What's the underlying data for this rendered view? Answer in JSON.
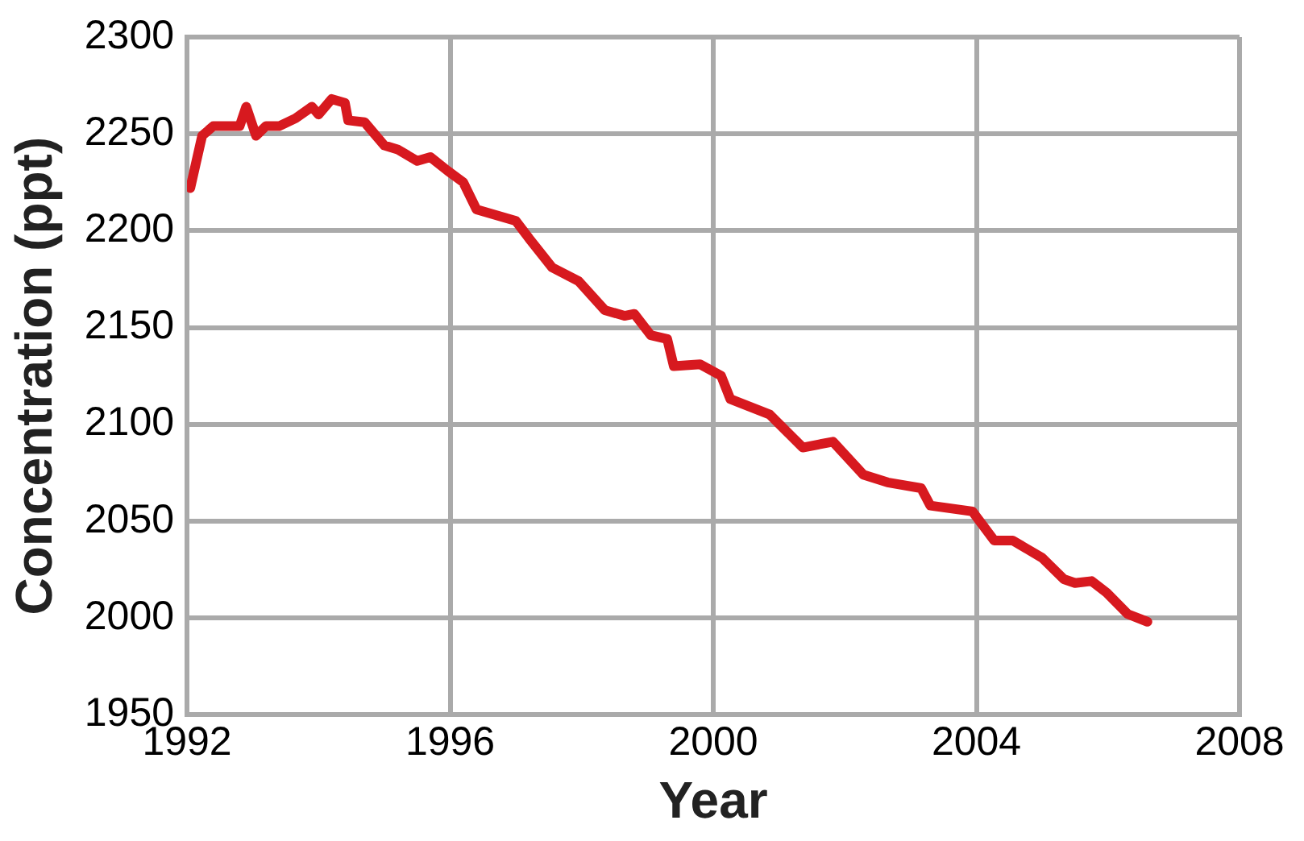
{
  "chart_data": {
    "type": "line",
    "xlabel": "Year",
    "ylabel": "Concentration (ppt)",
    "xlim": [
      1992,
      2008
    ],
    "xticks": [
      1992,
      1996,
      2000,
      2004,
      2008
    ],
    "ylim": [
      1950,
      2300
    ],
    "yticks": [
      1950,
      2000,
      2050,
      2100,
      2150,
      2200,
      2250,
      2300
    ],
    "grid": true,
    "legend": false,
    "marker": "none",
    "line_style": "solid",
    "series": [
      {
        "color": "#d7191f",
        "x": [
          1992.05,
          1992.23,
          1992.4,
          1992.8,
          1992.9,
          1993.05,
          1993.2,
          1993.4,
          1993.65,
          1993.9,
          1994.0,
          1994.2,
          1994.4,
          1994.45,
          1994.7,
          1995.0,
          1995.2,
          1995.5,
          1995.7,
          1995.96,
          1996.2,
          1996.4,
          1996.8,
          1997.0,
          1997.2,
          1997.55,
          1997.95,
          1998.35,
          1998.65,
          1998.8,
          1999.05,
          1999.3,
          1999.4,
          1999.8,
          2000.12,
          2000.26,
          2000.86,
          2001.36,
          2001.82,
          2002.28,
          2002.65,
          2003.16,
          2003.3,
          2003.94,
          2004.27,
          2004.55,
          2005.0,
          2005.33,
          2005.5,
          2005.75,
          2005.98,
          2006.3,
          2006.6
        ],
        "values": [
          2222,
          2249,
          2254,
          2254,
          2264,
          2249,
          2254,
          2254,
          2258,
          2264,
          2260,
          2268,
          2266,
          2257,
          2256,
          2244,
          2242,
          2236,
          2238,
          2231,
          2225,
          2211,
          2207,
          2205,
          2196,
          2181,
          2174,
          2159,
          2156,
          2157,
          2146,
          2144,
          2130,
          2131,
          2125,
          2113,
          2105,
          2088,
          2091,
          2074,
          2070,
          2067,
          2058,
          2055,
          2040,
          2040,
          2031,
          2020,
          2018,
          2019,
          2013,
          2002,
          1998
        ]
      }
    ]
  }
}
